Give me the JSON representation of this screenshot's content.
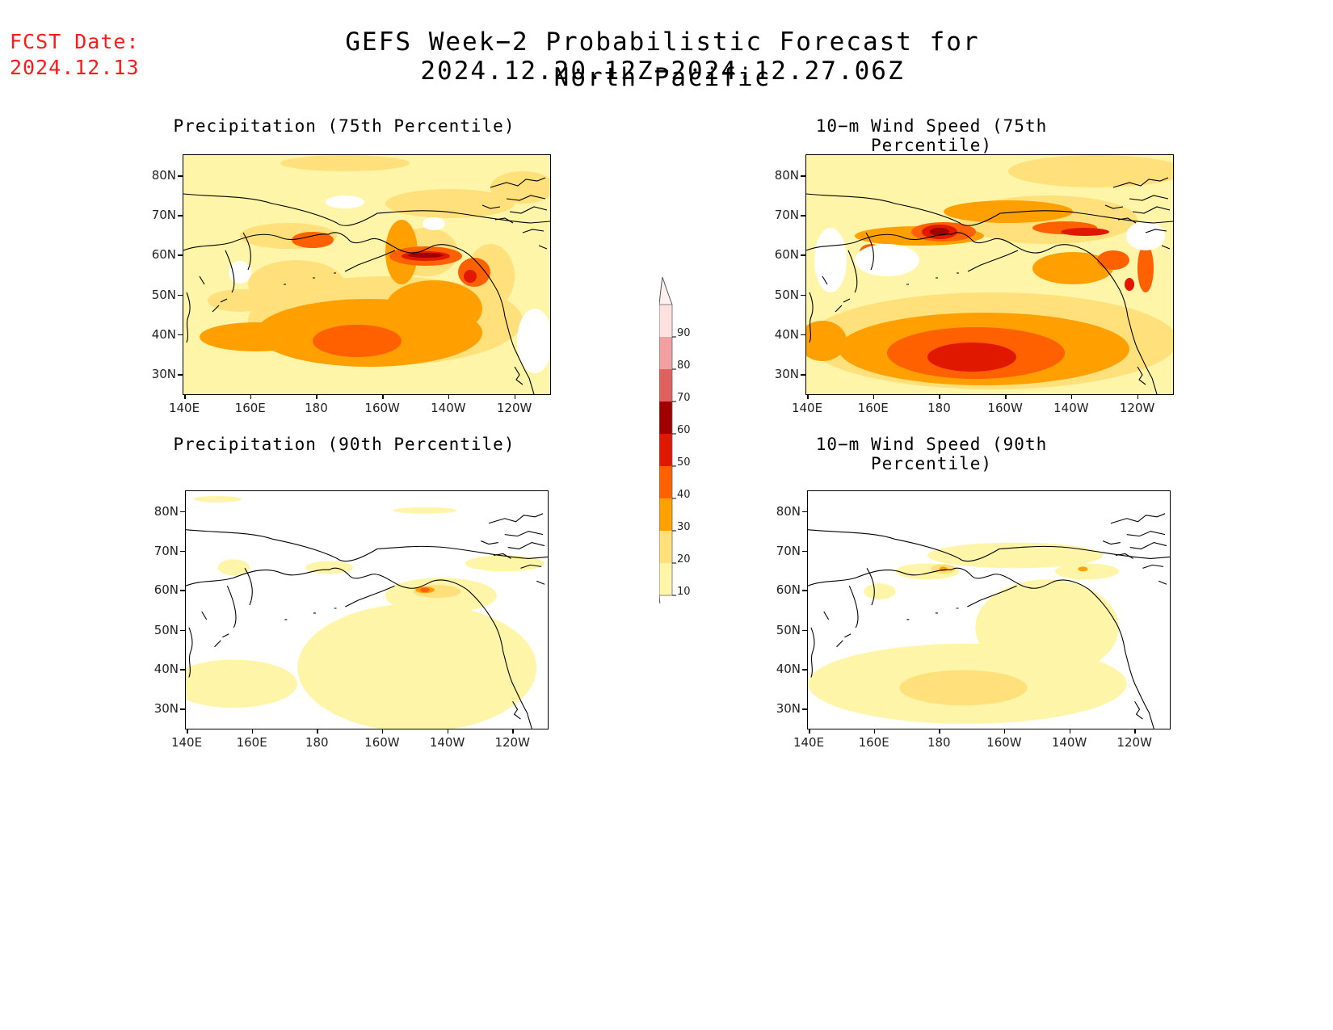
{
  "header": {
    "fcst_label": "FCST Date:",
    "fcst_date": "2024.12.13",
    "title": "GEFS Week−2 Probabilistic Forecast for 2024.12.20.12Z−2024.12.27.06Z",
    "subtitle": "North Pacific"
  },
  "axes": {
    "lat_labels": [
      "80N",
      "70N",
      "60N",
      "50N",
      "40N",
      "30N"
    ],
    "lon_labels": [
      "140E",
      "160E",
      "180",
      "160W",
      "140W",
      "120W"
    ]
  },
  "panels": [
    {
      "id": "precip75",
      "title": "Precipitation (75th Percentile)",
      "intensity": "high"
    },
    {
      "id": "wind75",
      "title": "10−m Wind Speed (75th Percentile)",
      "intensity": "high"
    },
    {
      "id": "precip90",
      "title": "Precipitation (90th Percentile)",
      "intensity": "low"
    },
    {
      "id": "wind90",
      "title": "10−m Wind Speed (90th Percentile)",
      "intensity": "low"
    }
  ],
  "colorbar": {
    "levels": [
      "10",
      "20",
      "30",
      "40",
      "50",
      "60",
      "70",
      "80",
      "90"
    ],
    "colors": [
      "#fff5a8",
      "#ffe07a",
      "#ffa000",
      "#ff6000",
      "#e01800",
      "#a00000",
      "#e06060",
      "#f0a0a0",
      "#ffe0e0"
    ]
  }
}
